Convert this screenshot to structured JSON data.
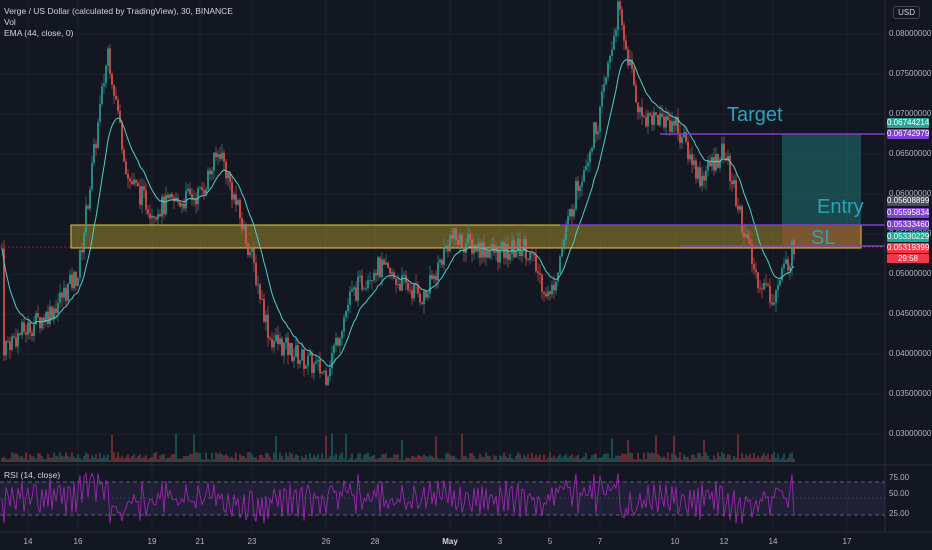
{
  "legend": {
    "symbol_line": "Verge / US Dollar (calculated by TradingView), 30, BINANCE",
    "vol_label": "Vol",
    "ema_label": "EMA (44, close, 0)",
    "rsi_label": "RSI (14, close)"
  },
  "currency_button": "USD",
  "price_axis": [
    "0.08000000",
    "0.07500000",
    "0.07000000",
    "0.06500000",
    "0.06000000",
    "0.05500000",
    "0.05000000",
    "0.04500000",
    "0.04000000",
    "0.03500000",
    "0.03000000"
  ],
  "rsi_axis": [
    "75.00",
    "50.00",
    "25.00"
  ],
  "date_axis": [
    {
      "label": "14",
      "bold": false
    },
    {
      "label": "16",
      "bold": false
    },
    {
      "label": "19",
      "bold": false
    },
    {
      "label": "21",
      "bold": false
    },
    {
      "label": "23",
      "bold": false
    },
    {
      "label": "26",
      "bold": false
    },
    {
      "label": "28",
      "bold": false
    },
    {
      "label": "May",
      "bold": true
    },
    {
      "label": "3",
      "bold": false
    },
    {
      "label": "5",
      "bold": false
    },
    {
      "label": "7",
      "bold": false
    },
    {
      "label": "10",
      "bold": false
    },
    {
      "label": "12",
      "bold": false
    },
    {
      "label": "14",
      "bold": false
    },
    {
      "label": "17",
      "bold": false
    }
  ],
  "price_badges": [
    {
      "label": "0.06744214",
      "color": "#26a69a"
    },
    {
      "label": "0.06742979",
      "color": "#7e3fd0"
    },
    {
      "label": "0.05608899",
      "color": "#4a4e58"
    },
    {
      "label": "0.05595834",
      "color": "#7e3fd0"
    },
    {
      "label": "0.05333460",
      "color": "#7e3fd0"
    },
    {
      "label": "0.05330229",
      "color": "#26a69a"
    },
    {
      "label": "0.05319399",
      "color": "#f23645"
    }
  ],
  "countdown": "29:58",
  "annotations": {
    "target": "Target",
    "entry": "Entry",
    "stop_loss": "SL"
  },
  "colors": {
    "background": "#131722",
    "up_candle": "#26a69a",
    "down_candle": "#ef5350",
    "ema": "#4dd0c8",
    "rsi": "#9c27b0",
    "zone_fill": "#b8a22a",
    "level_line": "#7e3fd0",
    "target_box": "#26a69a"
  },
  "chart_data": {
    "type": "candlestick",
    "title": "Verge / US Dollar (calculated by TradingView), 30, BINANCE",
    "x_range": [
      "Apr 13",
      "Apr 17 (May)"
    ],
    "ylim": [
      0.0275,
      0.0835
    ],
    "approx_path": [
      {
        "date": "Apr 13",
        "close": 0.041
      },
      {
        "date": "Apr 15",
        "close": 0.0455
      },
      {
        "date": "Apr 16",
        "close": 0.05
      },
      {
        "date": "Apr 17",
        "close": 0.078
      },
      {
        "date": "Apr 18",
        "close": 0.062
      },
      {
        "date": "Apr 19",
        "close": 0.058
      },
      {
        "date": "Apr 21",
        "close": 0.06
      },
      {
        "date": "Apr 21",
        "close": 0.0655
      },
      {
        "date": "Apr 23",
        "close": 0.052
      },
      {
        "date": "Apr 24",
        "close": 0.042
      },
      {
        "date": "Apr 26",
        "close": 0.0375
      },
      {
        "date": "Apr 27",
        "close": 0.047
      },
      {
        "date": "Apr 28",
        "close": 0.051
      },
      {
        "date": "Apr 30",
        "close": 0.047
      },
      {
        "date": "May 1",
        "close": 0.0545
      },
      {
        "date": "May 3",
        "close": 0.0525
      },
      {
        "date": "May 4",
        "close": 0.0535
      },
      {
        "date": "May 5",
        "close": 0.047
      },
      {
        "date": "May 6",
        "close": 0.06
      },
      {
        "date": "May 7",
        "close": 0.07
      },
      {
        "date": "May 8",
        "close": 0.083
      },
      {
        "date": "May 9",
        "close": 0.07
      },
      {
        "date": "May 10",
        "close": 0.069
      },
      {
        "date": "May 11",
        "close": 0.062
      },
      {
        "date": "May 12",
        "close": 0.0655
      },
      {
        "date": "May 13",
        "close": 0.05
      },
      {
        "date": "May 14",
        "close": 0.047
      },
      {
        "date": "May 15",
        "close": 0.0532
      }
    ],
    "levels": {
      "target": 0.06742979,
      "entry": 0.05595834,
      "stop_loss": 0.0533346,
      "last_price": 0.05319399
    },
    "rsi_levels": [
      75,
      50,
      25
    ]
  }
}
